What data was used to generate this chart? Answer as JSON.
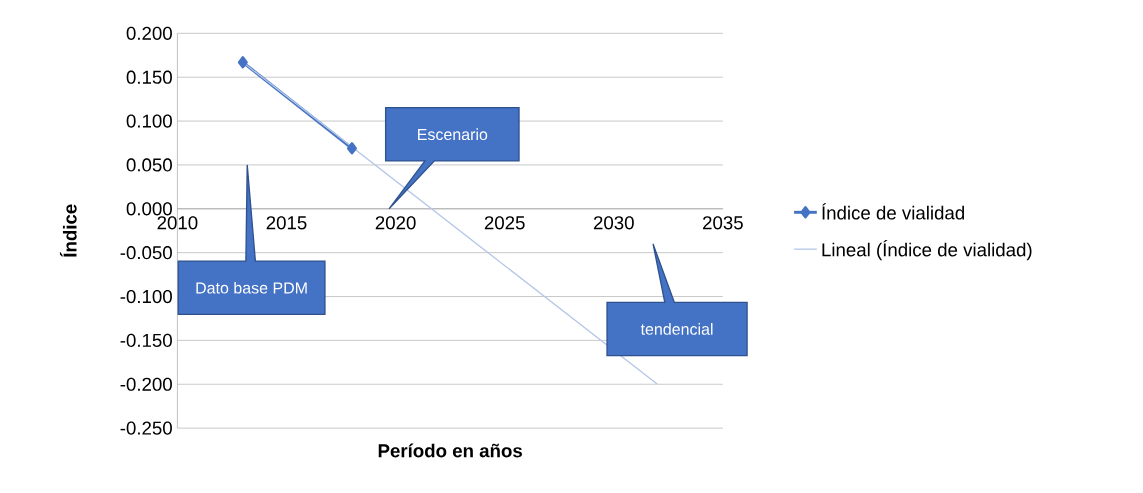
{
  "chart_data": {
    "type": "line",
    "xlabel": "Período en años",
    "ylabel": "Índice",
    "xlim": [
      2010,
      2035
    ],
    "xticks": [
      2010,
      2015,
      2020,
      2025,
      2030,
      2035
    ],
    "ylim": [
      -0.25,
      0.2
    ],
    "yticks": [
      {
        "value": -0.25,
        "label": "-0.250"
      },
      {
        "value": -0.2,
        "label": "-0.200"
      },
      {
        "value": -0.15,
        "label": "-0.150"
      },
      {
        "value": -0.1,
        "label": "-0.100"
      },
      {
        "value": -0.05,
        "label": "-0.050"
      },
      {
        "value": 0,
        "label": "0.000"
      },
      {
        "value": 0.05,
        "label": "0.050"
      },
      {
        "value": 0.1,
        "label": "0.100"
      },
      {
        "value": 0.15,
        "label": "0.150"
      },
      {
        "value": 0.2,
        "label": "0.200"
      }
    ],
    "grid": "y",
    "legend": "right",
    "series": [
      {
        "name": "Índice de vialidad",
        "color": "#4472c4",
        "marker": "diamond",
        "x": [
          2013,
          2018
        ],
        "values": [
          0.167,
          0.069
        ]
      },
      {
        "name": "Lineal (Índice de vialidad)",
        "type": "line",
        "color": "#b4c7e7",
        "marker": "none",
        "x": [
          2013,
          2032
        ],
        "values": [
          0.167,
          -0.2
        ]
      }
    ],
    "annotations": [
      "Dato base PDM",
      "Escenario",
      "tendencial"
    ]
  }
}
